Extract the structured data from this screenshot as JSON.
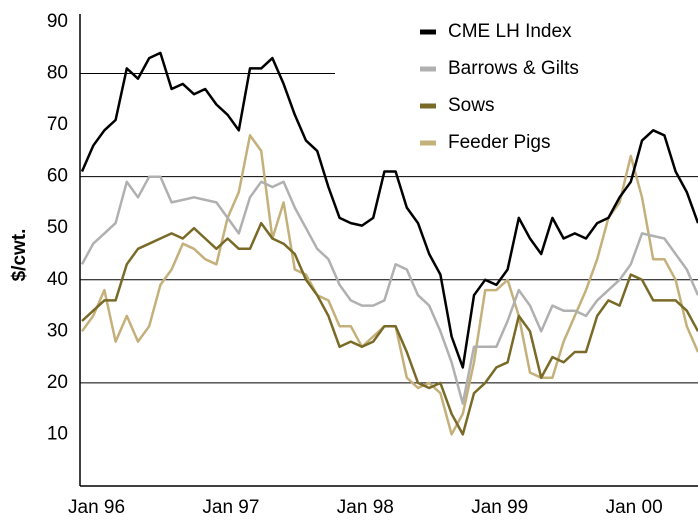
{
  "chart_data": {
    "type": "line",
    "ylabel": "$/cwt.",
    "categories": [
      "Jan 96",
      null,
      null,
      null,
      null,
      null,
      null,
      null,
      null,
      null,
      null,
      null,
      "Jan 97",
      null,
      null,
      null,
      null,
      null,
      null,
      null,
      null,
      null,
      null,
      null,
      "Jan 98",
      null,
      null,
      null,
      null,
      null,
      null,
      null,
      null,
      null,
      null,
      null,
      "Jan 99",
      null,
      null,
      null,
      null,
      null,
      null,
      null,
      null,
      null,
      null,
      null,
      "Jan 00",
      null,
      null,
      null,
      null,
      null,
      null,
      null
    ],
    "series": [
      {
        "name": "CME LH Index",
        "color": "#000000",
        "values": [
          61,
          66,
          69,
          71,
          81,
          79,
          83,
          84,
          77,
          78,
          76,
          77,
          74,
          72,
          69,
          81,
          81,
          83,
          78,
          72,
          67,
          65,
          58,
          52,
          51,
          50.5,
          52,
          61,
          61,
          54,
          51,
          45,
          41,
          29,
          23,
          37,
          40,
          39,
          42,
          52,
          48,
          45,
          52,
          48,
          49,
          48,
          51,
          52,
          56,
          59,
          67,
          69,
          68,
          61,
          57,
          51
        ]
      },
      {
        "name": "Barrows & Gilts",
        "color": "#b0b0b0",
        "values": [
          43,
          47,
          49,
          51,
          59,
          56,
          60,
          60,
          55,
          55.5,
          56,
          55.5,
          55,
          52,
          49,
          56,
          59,
          58,
          59,
          54,
          50,
          46,
          44,
          39,
          36,
          35,
          35,
          36,
          43,
          42,
          37,
          35,
          30,
          24,
          16,
          27,
          27,
          27,
          32,
          38,
          35,
          30,
          35,
          34,
          34,
          33,
          36,
          38,
          40,
          43,
          49,
          48.5,
          48,
          45,
          42,
          37
        ]
      },
      {
        "name": "Sows",
        "color": "#7a6a28",
        "values": [
          32,
          34,
          36,
          36,
          43,
          46,
          47,
          48,
          49,
          48,
          50,
          48,
          46,
          48,
          46,
          46,
          51,
          48,
          47,
          45,
          40,
          37,
          33,
          27,
          28,
          27,
          28,
          31,
          31,
          26,
          20,
          19,
          20,
          14,
          10,
          18,
          20,
          23,
          24,
          33,
          30,
          21,
          25,
          24,
          26,
          26,
          33,
          36,
          35,
          41,
          40,
          36,
          36,
          36,
          34,
          30
        ]
      },
      {
        "name": "Feeder Pigs",
        "color": "#c4b07a",
        "values": [
          30,
          33,
          38,
          28,
          33,
          28,
          31,
          39,
          42,
          47,
          46,
          44,
          43,
          52,
          57,
          68,
          65,
          48,
          55,
          42,
          41,
          37,
          36,
          31,
          31,
          27,
          29,
          31,
          31,
          21,
          19,
          20,
          18,
          10,
          14,
          24,
          38,
          38,
          40,
          33,
          22,
          21,
          21,
          28,
          33,
          38,
          44,
          52,
          55,
          64,
          56,
          44,
          44,
          40,
          31,
          26
        ]
      }
    ],
    "ylim": [
      0,
      90
    ],
    "yticks": [
      10,
      20,
      30,
      40,
      50,
      60,
      70,
      80,
      90
    ],
    "grid": true,
    "legend": "top-right"
  }
}
